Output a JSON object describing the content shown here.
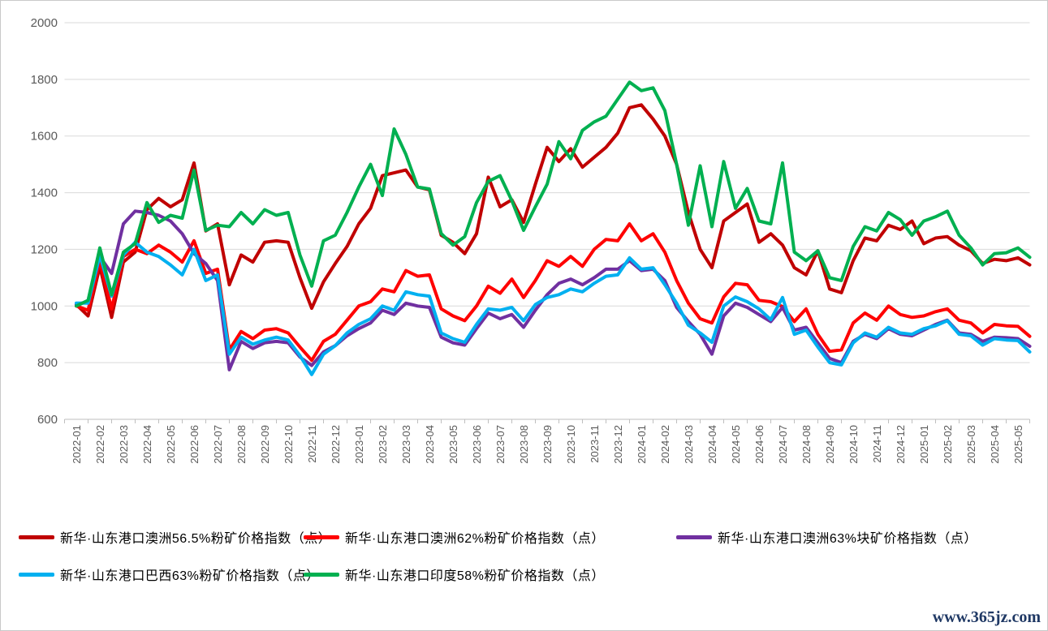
{
  "watermark": "www.365jz.com",
  "style": {
    "grid_color": "#D9D9D9",
    "axis_color": "#BFBFBF",
    "tick_label_color": "#595959",
    "watermark_color": "#1F3864",
    "line_width": 4
  },
  "chart_data": {
    "type": "line",
    "title": "",
    "xlabel": "",
    "ylabel": "",
    "grid": "horizontal",
    "legend_position": "bottom",
    "ylim": [
      600,
      2000
    ],
    "y_ticks": [
      600,
      800,
      1000,
      1200,
      1400,
      1600,
      1800,
      2000
    ],
    "x_labels": [
      "2022-01",
      "2022-02",
      "2022-03",
      "2022-04",
      "2022-05",
      "2022-06",
      "2022-07",
      "2022-08",
      "2022-09",
      "2022-10",
      "2022-11",
      "2022-12",
      "2023-01",
      "2023-02",
      "2023-03",
      "2023-04",
      "2023-05",
      "2023-06",
      "2023-07",
      "2023-08",
      "2023-09",
      "2023-10",
      "2023-11",
      "2023-12",
      "2024-01",
      "2024-02",
      "2024-03",
      "2024-04",
      "2024-05",
      "2024-06",
      "2024-07",
      "2024-08",
      "2024-09",
      "2024-10",
      "2024-11",
      "2024-12",
      "2025-01",
      "2025-02",
      "2025-03",
      "2025-04",
      "2025-05"
    ],
    "sampling": "two points per month (start and mid-month), estimated from pixels",
    "series": [
      {
        "name": "新华·山东港口澳洲56.5%粉矿价格指数（点）",
        "color": "#C00000",
        "values": [
          1005,
          965,
          1140,
          960,
          1155,
          1190,
          1340,
          1380,
          1350,
          1375,
          1505,
          1265,
          1290,
          1075,
          1180,
          1155,
          1225,
          1230,
          1225,
          1100,
          992,
          1085,
          1150,
          1210,
          1290,
          1345,
          1460,
          1470,
          1480,
          1420,
          1410,
          1250,
          1225,
          1185,
          1255,
          1455,
          1350,
          1375,
          1295,
          1430,
          1560,
          1510,
          1555,
          1490,
          1525,
          1560,
          1610,
          1700,
          1710,
          1660,
          1600,
          1500,
          1330,
          1200,
          1135,
          1300,
          1330,
          1360,
          1225,
          1255,
          1215,
          1135,
          1110,
          1195,
          1060,
          1047,
          1160,
          1240,
          1230,
          1285,
          1270,
          1300,
          1220,
          1240,
          1245,
          1215,
          1195,
          1150,
          1165,
          1160,
          1170,
          1145
        ]
      },
      {
        "name": "新华·山东港口澳洲62%粉矿价格指数（点）",
        "color": "#FF0000",
        "values": [
          1000,
          985,
          1160,
          990,
          1175,
          1200,
          1185,
          1215,
          1190,
          1155,
          1230,
          1115,
          1130,
          845,
          910,
          885,
          915,
          920,
          905,
          855,
          808,
          875,
          900,
          950,
          1000,
          1015,
          1060,
          1050,
          1125,
          1105,
          1110,
          990,
          965,
          948,
          1000,
          1070,
          1045,
          1095,
          1030,
          1090,
          1160,
          1140,
          1175,
          1140,
          1200,
          1235,
          1230,
          1290,
          1230,
          1255,
          1190,
          1090,
          1010,
          955,
          940,
          1032,
          1080,
          1075,
          1020,
          1015,
          998,
          945,
          990,
          900,
          840,
          845,
          940,
          975,
          950,
          1000,
          970,
          960,
          965,
          980,
          990,
          950,
          940,
          905,
          935,
          930,
          928,
          893
        ]
      },
      {
        "name": "新华·山东港口澳洲63%块矿价格指数（点）",
        "color": "#7030A0",
        "values": [
          1005,
          1015,
          1175,
          1115,
          1290,
          1335,
          1330,
          1320,
          1300,
          1255,
          1185,
          1150,
          1090,
          775,
          875,
          850,
          870,
          875,
          870,
          820,
          790,
          838,
          860,
          895,
          920,
          940,
          985,
          970,
          1010,
          1000,
          995,
          890,
          870,
          862,
          920,
          975,
          955,
          970,
          925,
          985,
          1040,
          1080,
          1095,
          1075,
          1100,
          1130,
          1130,
          1160,
          1125,
          1130,
          1090,
          995,
          945,
          900,
          830,
          965,
          1010,
          995,
          970,
          945,
          995,
          915,
          925,
          870,
          815,
          800,
          875,
          900,
          885,
          920,
          900,
          895,
          915,
          935,
          950,
          905,
          900,
          875,
          890,
          888,
          885,
          858
        ]
      },
      {
        "name": "新华·山东港口巴西63%粉矿价格指数（点）",
        "color": "#00B0F0",
        "values": [
          1010,
          1010,
          1180,
          1035,
          1180,
          1225,
          1190,
          1175,
          1145,
          1110,
          1200,
          1090,
          1110,
          830,
          890,
          865,
          880,
          890,
          880,
          825,
          758,
          830,
          860,
          905,
          935,
          955,
          1000,
          985,
          1050,
          1040,
          1035,
          905,
          885,
          872,
          935,
          990,
          985,
          995,
          948,
          1005,
          1030,
          1040,
          1060,
          1050,
          1080,
          1105,
          1110,
          1170,
          1130,
          1135,
          1075,
          1010,
          932,
          905,
          872,
          1000,
          1032,
          1015,
          990,
          952,
          1030,
          900,
          915,
          855,
          800,
          792,
          870,
          905,
          890,
          925,
          905,
          900,
          920,
          930,
          948,
          900,
          895,
          862,
          885,
          880,
          878,
          838
        ]
      },
      {
        "name": "新华·山东港口印度58%粉矿价格指数（点）",
        "color": "#00B050",
        "values": [
          1000,
          1020,
          1205,
          1040,
          1190,
          1220,
          1365,
          1295,
          1320,
          1310,
          1480,
          1267,
          1285,
          1280,
          1330,
          1290,
          1340,
          1320,
          1330,
          1180,
          1070,
          1230,
          1250,
          1330,
          1420,
          1500,
          1390,
          1625,
          1535,
          1420,
          1413,
          1256,
          1215,
          1245,
          1365,
          1440,
          1460,
          1372,
          1267,
          1350,
          1430,
          1580,
          1520,
          1620,
          1650,
          1670,
          1730,
          1790,
          1760,
          1770,
          1690,
          1500,
          1285,
          1495,
          1280,
          1510,
          1345,
          1415,
          1300,
          1290,
          1505,
          1190,
          1160,
          1195,
          1100,
          1090,
          1210,
          1280,
          1265,
          1330,
          1305,
          1250,
          1300,
          1315,
          1335,
          1250,
          1205,
          1145,
          1185,
          1188,
          1205,
          1172
        ]
      }
    ]
  }
}
